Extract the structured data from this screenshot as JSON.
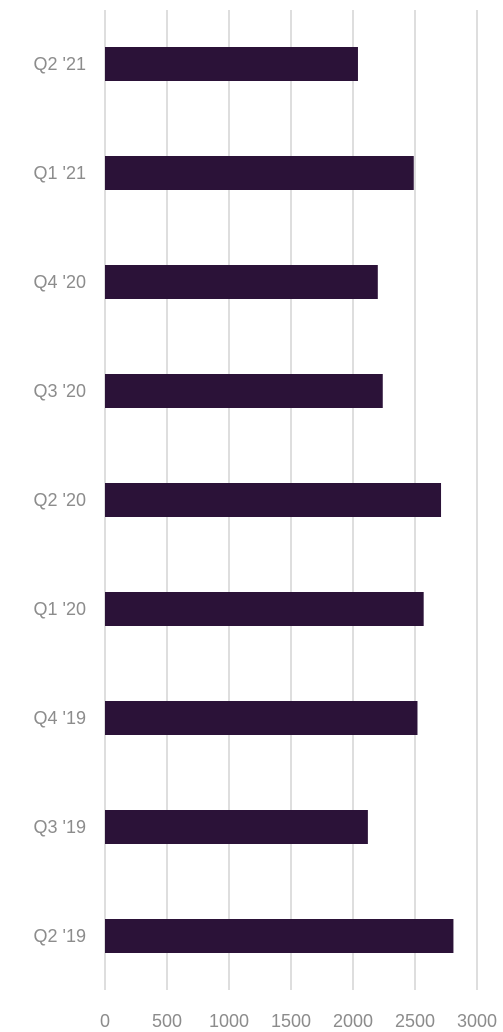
{
  "chart_data": {
    "type": "bar",
    "orientation": "horizontal",
    "title": "",
    "xlabel": "",
    "ylabel": "",
    "categories": [
      "Q2 '21",
      "Q1 '21",
      "Q4 '20",
      "Q3 '20",
      "Q2 '20",
      "Q1 '20",
      "Q4 '19",
      "Q3 '19",
      "Q2 '19"
    ],
    "values": [
      2040,
      2490,
      2200,
      2240,
      2710,
      2570,
      2520,
      2120,
      2810
    ],
    "xlim": [
      0,
      3000
    ],
    "xticks": [
      0,
      500,
      1000,
      1500,
      2000,
      2500,
      3000
    ],
    "grid": "vertical",
    "legend": "none",
    "bar_color": "#2b1238"
  }
}
